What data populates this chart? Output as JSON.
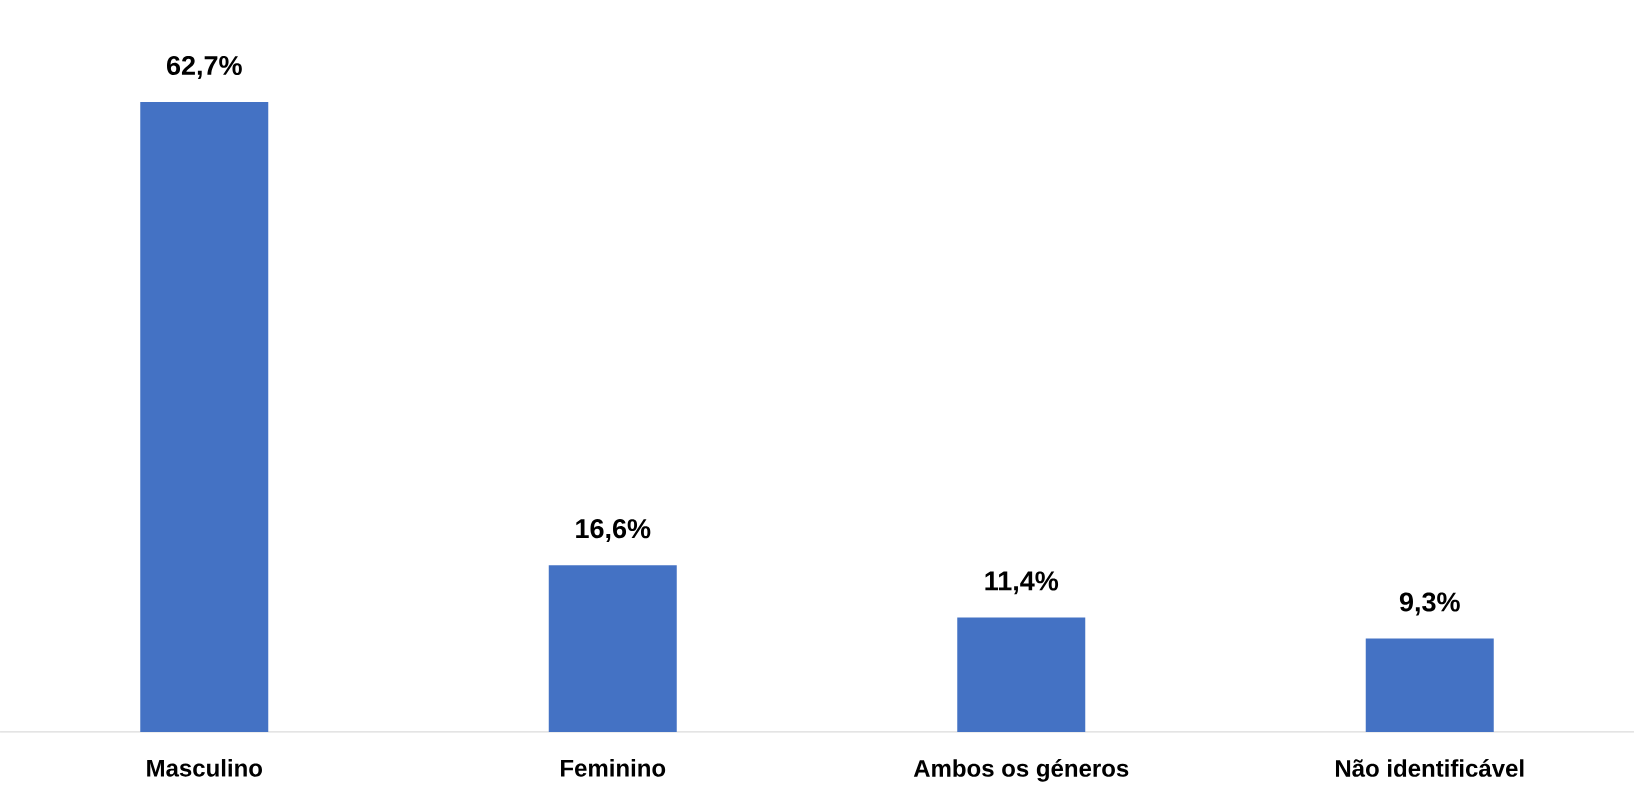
{
  "chart_data": {
    "type": "bar",
    "categories": [
      "Masculino",
      "Feminino",
      "Ambos os géneros",
      "Não identificável"
    ],
    "values": [
      62.7,
      16.6,
      11.4,
      9.3
    ],
    "value_labels": [
      "62,7%",
      "16,6%",
      "11,4%",
      "9,3%"
    ],
    "color": "#4472c4"
  }
}
